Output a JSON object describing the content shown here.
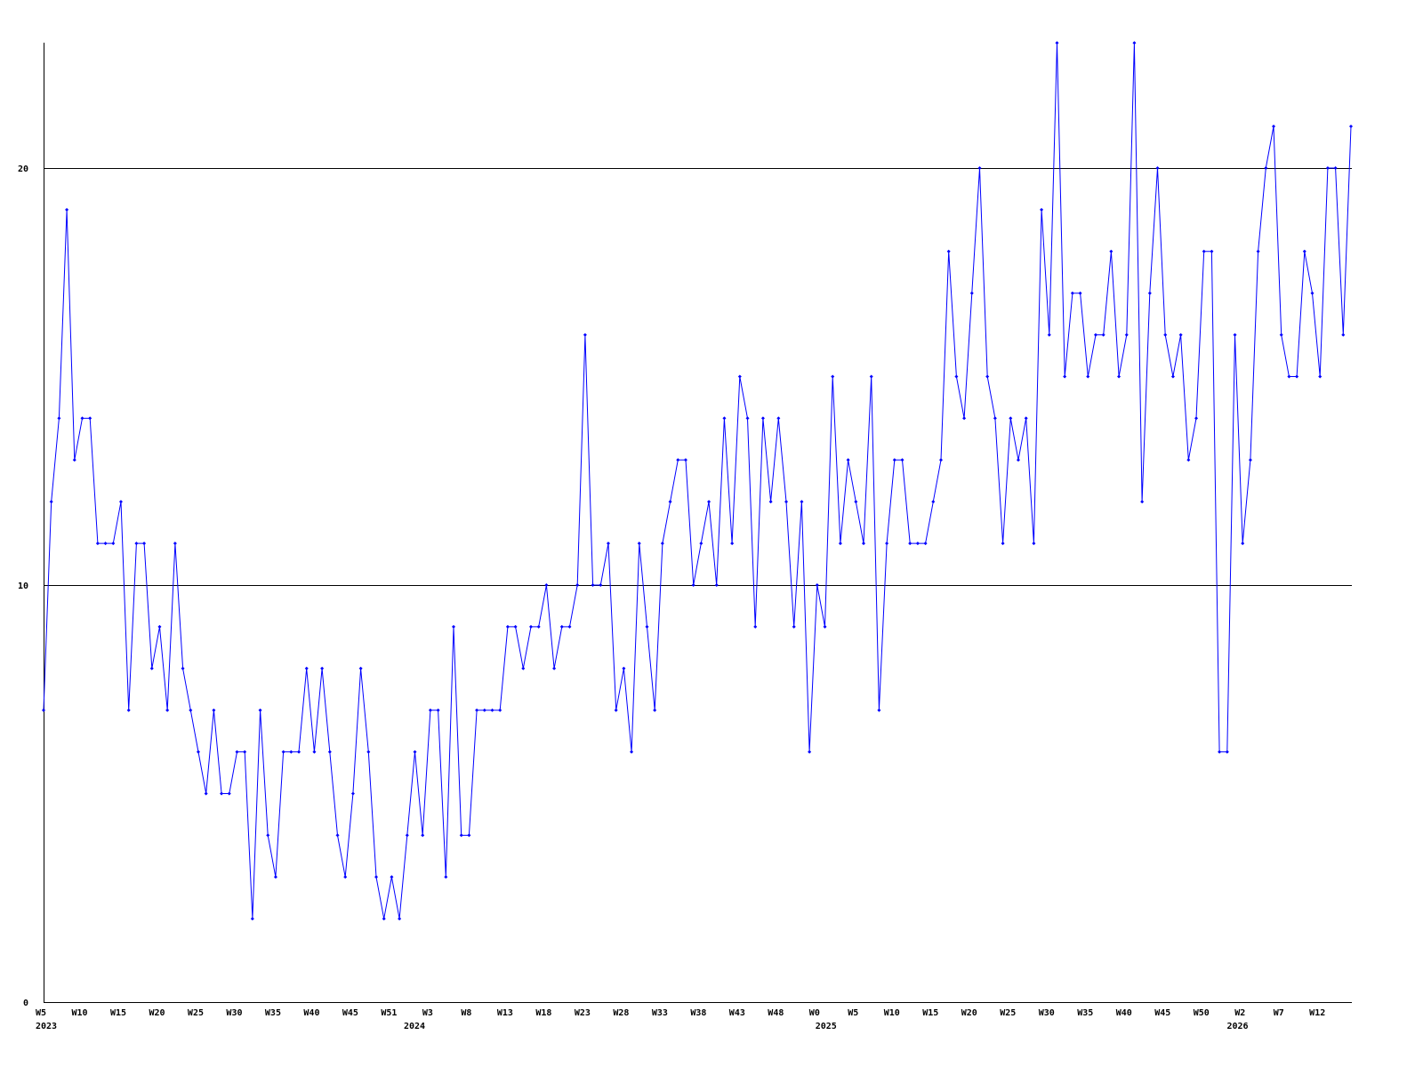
{
  "chart_data": {
    "type": "line",
    "title": "",
    "xlabel": "",
    "ylabel": "",
    "ylim": [
      0,
      23
    ],
    "grid": "horizontal at labeled y ticks",
    "y_ticks": [
      0,
      10,
      20
    ],
    "x_ticks": [
      {
        "label": "W5",
        "pos": 0
      },
      {
        "label": "W10",
        "pos": 5
      },
      {
        "label": "W15",
        "pos": 10
      },
      {
        "label": "W20",
        "pos": 15
      },
      {
        "label": "W25",
        "pos": 20
      },
      {
        "label": "W30",
        "pos": 25
      },
      {
        "label": "W35",
        "pos": 30
      },
      {
        "label": "W40",
        "pos": 35
      },
      {
        "label": "W45",
        "pos": 40
      },
      {
        "label": "W51",
        "pos": 45
      },
      {
        "label": "W3",
        "pos": 50
      },
      {
        "label": "W8",
        "pos": 55
      },
      {
        "label": "W13",
        "pos": 60
      },
      {
        "label": "W18",
        "pos": 65
      },
      {
        "label": "W23",
        "pos": 70
      },
      {
        "label": "W28",
        "pos": 75
      },
      {
        "label": "W33",
        "pos": 80
      },
      {
        "label": "W38",
        "pos": 85
      },
      {
        "label": "W43",
        "pos": 90
      },
      {
        "label": "W48",
        "pos": 95
      },
      {
        "label": "W0",
        "pos": 100
      },
      {
        "label": "W5",
        "pos": 105
      },
      {
        "label": "W10",
        "pos": 110
      },
      {
        "label": "W15",
        "pos": 115
      },
      {
        "label": "W20",
        "pos": 120
      },
      {
        "label": "W25",
        "pos": 125
      },
      {
        "label": "W30",
        "pos": 130
      },
      {
        "label": "W35",
        "pos": 135
      },
      {
        "label": "W40",
        "pos": 140
      },
      {
        "label": "W45",
        "pos": 145
      },
      {
        "label": "W50",
        "pos": 150
      },
      {
        "label": "W2",
        "pos": 155
      },
      {
        "label": "W7",
        "pos": 160
      },
      {
        "label": "W12",
        "pos": 165
      }
    ],
    "year_labels": [
      {
        "label": "2023",
        "pos": 0
      },
      {
        "label": "2024",
        "pos": 47.6
      },
      {
        "label": "2025",
        "pos": 100.8
      },
      {
        "label": "2026",
        "pos": 154
      }
    ],
    "series": [
      {
        "color": "#0000ff",
        "values": [
          7,
          12,
          14,
          19,
          13,
          14,
          14,
          11,
          11,
          11,
          12,
          7,
          11,
          11,
          8,
          9,
          7,
          11,
          8,
          7,
          6,
          5,
          7,
          5,
          5,
          6,
          6,
          2,
          7,
          4,
          3,
          6,
          6,
          6,
          8,
          6,
          8,
          6,
          4,
          3,
          5,
          8,
          6,
          3,
          2,
          3,
          2,
          4,
          6,
          4,
          7,
          7,
          3,
          9,
          4,
          4,
          7,
          7,
          7,
          7,
          9,
          9,
          8,
          9,
          9,
          10,
          8,
          9,
          9,
          10,
          16,
          10,
          10,
          11,
          7,
          8,
          6,
          11,
          9,
          7,
          11,
          12,
          13,
          13,
          10,
          11,
          12,
          10,
          14,
          11,
          15,
          14,
          9,
          14,
          12,
          14,
          12,
          9,
          12,
          6,
          10,
          9,
          15,
          11,
          13,
          12,
          11,
          15,
          7,
          11,
          13,
          13,
          11,
          11,
          11,
          12,
          13,
          18,
          15,
          14,
          17,
          20,
          15,
          14,
          11,
          14,
          13,
          14,
          11,
          19,
          16,
          23,
          15,
          17,
          17,
          15,
          16,
          16,
          18,
          15,
          16,
          23,
          12,
          17,
          20,
          16,
          15,
          16,
          13,
          14,
          18,
          18,
          6,
          6,
          16,
          11,
          13,
          18,
          20,
          21,
          16,
          15,
          15,
          18,
          17,
          15,
          20,
          20,
          16,
          21
        ]
      }
    ]
  }
}
